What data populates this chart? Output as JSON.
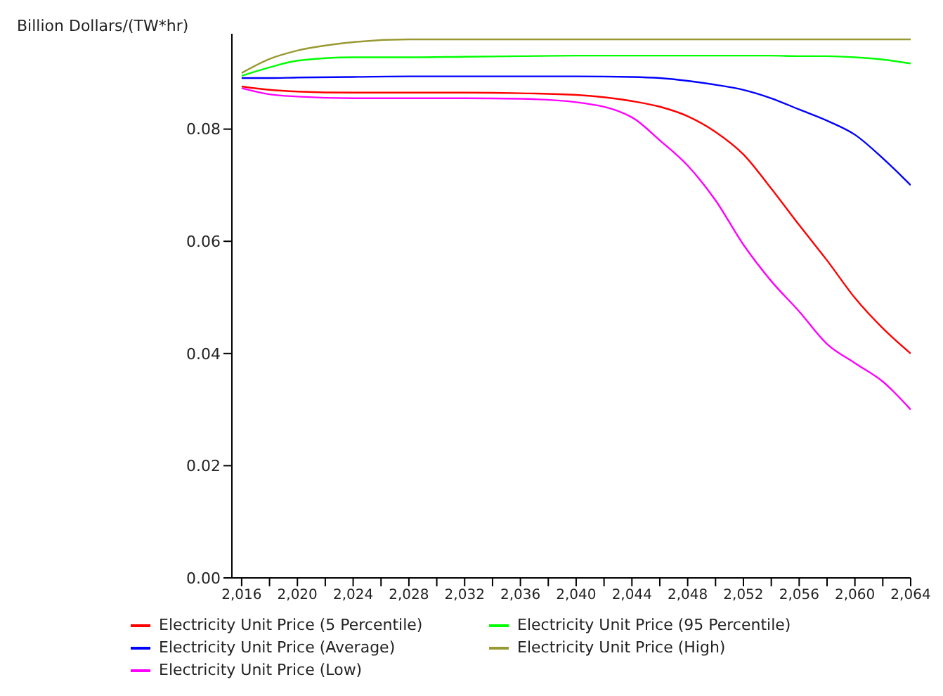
{
  "chart_data": {
    "type": "line",
    "ylabel": "Billion Dollars/(TW*hr)",
    "x": [
      2016,
      2018,
      2020,
      2024,
      2028,
      2032,
      2036,
      2040,
      2044,
      2046,
      2048,
      2050,
      2052,
      2054,
      2056,
      2058,
      2060,
      2062,
      2064
    ],
    "xlim": [
      2015.3,
      2064
    ],
    "xticks": [
      {
        "value": 2016,
        "label": "2,016"
      },
      {
        "value": 2018,
        "label": null
      },
      {
        "value": 2020,
        "label": "2,020"
      },
      {
        "value": 2022,
        "label": null
      },
      {
        "value": 2024,
        "label": "2,024"
      },
      {
        "value": 2026,
        "label": null
      },
      {
        "value": 2028,
        "label": "2,028"
      },
      {
        "value": 2030,
        "label": null
      },
      {
        "value": 2032,
        "label": "2,032"
      },
      {
        "value": 2034,
        "label": null
      },
      {
        "value": 2036,
        "label": "2,036"
      },
      {
        "value": 2038,
        "label": null
      },
      {
        "value": 2040,
        "label": "2,040"
      },
      {
        "value": 2042,
        "label": null
      },
      {
        "value": 2044,
        "label": "2,044"
      },
      {
        "value": 2046,
        "label": null
      },
      {
        "value": 2048,
        "label": "2,048"
      },
      {
        "value": 2050,
        "label": null
      },
      {
        "value": 2052,
        "label": "2,052"
      },
      {
        "value": 2054,
        "label": null
      },
      {
        "value": 2056,
        "label": "2,056"
      },
      {
        "value": 2058,
        "label": null
      },
      {
        "value": 2060,
        "label": "2,060"
      },
      {
        "value": 2062,
        "label": null
      },
      {
        "value": 2064,
        "label": "2,064"
      }
    ],
    "ylim": [
      0,
      0.097
    ],
    "yticks": [
      {
        "value": 0,
        "label": "0.00"
      },
      {
        "value": 0.02,
        "label": "0.02"
      },
      {
        "value": 0.04,
        "label": "0.04"
      },
      {
        "value": 0.06,
        "label": "0.06"
      },
      {
        "value": 0.08,
        "label": "0.08"
      }
    ],
    "legend": "bottom",
    "series": [
      {
        "name": "Electricity Unit Price (5 Percentile)",
        "color": "#ff0000",
        "values": [
          0.0876,
          0.087,
          0.0867,
          0.0865,
          0.0865,
          0.0865,
          0.0864,
          0.0861,
          0.085,
          0.084,
          0.0823,
          0.0795,
          0.0755,
          0.0694,
          0.0629,
          0.0566,
          0.0499,
          0.0445,
          0.04
        ]
      },
      {
        "name": "Electricity Unit Price (95 Percentile)",
        "color": "#00ff00",
        "values": [
          0.0895,
          0.091,
          0.0922,
          0.0928,
          0.0928,
          0.0929,
          0.093,
          0.0931,
          0.0931,
          0.0931,
          0.0931,
          0.0931,
          0.0931,
          0.0931,
          0.093,
          0.093,
          0.0928,
          0.0924,
          0.0917
        ]
      },
      {
        "name": "Electricity Unit Price (Average)",
        "color": "#0000ff",
        "values": [
          0.0891,
          0.0891,
          0.0892,
          0.0893,
          0.0894,
          0.0894,
          0.0894,
          0.0894,
          0.0893,
          0.0891,
          0.0886,
          0.0879,
          0.087,
          0.0855,
          0.0835,
          0.0815,
          0.079,
          0.0748,
          0.07
        ]
      },
      {
        "name": "Electricity Unit Price (High)",
        "color": "#999933",
        "values": [
          0.09,
          0.0925,
          0.094,
          0.0955,
          0.096,
          0.096,
          0.096,
          0.096,
          0.096,
          0.096,
          0.096,
          0.096,
          0.096,
          0.096,
          0.096,
          0.096,
          0.096,
          0.096,
          0.096
        ]
      },
      {
        "name": "Electricity Unit Price (Low)",
        "color": "#ff00ff",
        "values": [
          0.0873,
          0.0862,
          0.0858,
          0.0855,
          0.0855,
          0.0855,
          0.0854,
          0.0848,
          0.0821,
          0.078,
          0.0735,
          0.0673,
          0.0594,
          0.0529,
          0.0475,
          0.0417,
          0.0383,
          0.035,
          0.03
        ]
      }
    ]
  }
}
